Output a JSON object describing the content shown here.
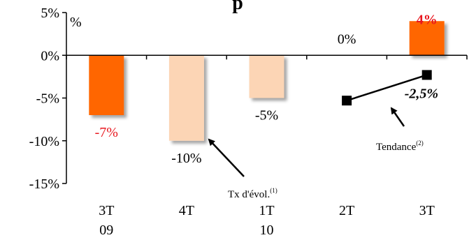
{
  "chart_data": {
    "type": "bar",
    "title": "p",
    "ylabel": "%",
    "ylim": [
      -15,
      5
    ],
    "y_ticks": [
      "5%",
      "0%",
      "-5%",
      "-10%",
      "-15%"
    ],
    "y_tick_values": [
      5,
      0,
      -5,
      -10,
      -15
    ],
    "categories": [
      {
        "top": "3T",
        "bottom": "09"
      },
      {
        "top": "4T",
        "bottom": ""
      },
      {
        "top": "1T",
        "bottom": "10"
      },
      {
        "top": "2T",
        "bottom": ""
      },
      {
        "top": "3T",
        "bottom": ""
      }
    ],
    "values": [
      -7,
      -10,
      -5,
      0,
      4
    ],
    "value_labels": [
      "-7%",
      "-10%",
      "-5%",
      "0%",
      "4%"
    ],
    "bar_colors": [
      "#ff6600",
      "#fcd5b5",
      "#fcd5b5",
      "#fcd5b5",
      "#ff6600"
    ],
    "label_colors": [
      "#e8161e",
      "#000000",
      "#000000",
      "#000000",
      "#e8161e"
    ],
    "trend": {
      "x_index": [
        3,
        4
      ],
      "values": [
        -5.3,
        -2.3
      ],
      "label": "-2,5%"
    },
    "annotations": {
      "growth_label": "Tx d'évol.",
      "growth_sup": "(1)",
      "trend_label": "Tendance",
      "trend_sup": "(2)"
    },
    "colors": {
      "highlight": "#ff6600",
      "light": "#fcd5b5",
      "red_label": "#e8161e",
      "axis": "#000000"
    }
  }
}
